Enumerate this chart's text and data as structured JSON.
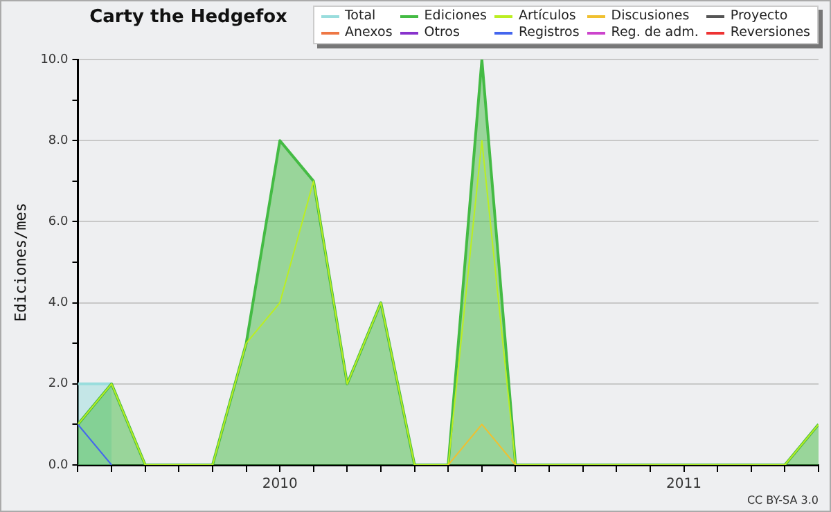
{
  "chart_data": {
    "type": "line",
    "title": "Carty the Hedgefox",
    "ylabel": "Ediciones/mes",
    "x": [
      "2009-07",
      "2009-08",
      "2009-09",
      "2009-10",
      "2009-11",
      "2009-12",
      "2010-01",
      "2010-02",
      "2010-03",
      "2010-04",
      "2010-05",
      "2010-06",
      "2010-07",
      "2010-08",
      "2010-09",
      "2010-10",
      "2010-11",
      "2010-12",
      "2011-01",
      "2011-02",
      "2011-03",
      "2011-04",
      "2011-05"
    ],
    "xlim": [
      "2009-07",
      "2011-05"
    ],
    "xticks": [
      {
        "value": "2009-07",
        "label": null
      },
      {
        "value": "2009-08",
        "label": null
      },
      {
        "value": "2009-09",
        "label": null
      },
      {
        "value": "2009-10",
        "label": null
      },
      {
        "value": "2009-11",
        "label": null
      },
      {
        "value": "2009-12",
        "label": null
      },
      {
        "value": "2010-01",
        "label": "2010"
      },
      {
        "value": "2010-02",
        "label": null
      },
      {
        "value": "2010-03",
        "label": null
      },
      {
        "value": "2010-04",
        "label": null
      },
      {
        "value": "2010-05",
        "label": null
      },
      {
        "value": "2010-06",
        "label": null
      },
      {
        "value": "2010-07",
        "label": null
      },
      {
        "value": "2010-08",
        "label": null
      },
      {
        "value": "2010-09",
        "label": null
      },
      {
        "value": "2010-10",
        "label": null
      },
      {
        "value": "2010-11",
        "label": null
      },
      {
        "value": "2010-12",
        "label": null
      },
      {
        "value": "2011-01",
        "label": "2011"
      },
      {
        "value": "2011-02",
        "label": null
      },
      {
        "value": "2011-03",
        "label": null
      },
      {
        "value": "2011-04",
        "label": null
      },
      {
        "value": "2011-05",
        "label": null
      }
    ],
    "ylim": [
      0,
      10
    ],
    "yticks": [
      {
        "value": 0,
        "label": "0.0"
      },
      {
        "value": 1,
        "label": null
      },
      {
        "value": 2,
        "label": "2.0"
      },
      {
        "value": 3,
        "label": null
      },
      {
        "value": 4,
        "label": "4.0"
      },
      {
        "value": 5,
        "label": null
      },
      {
        "value": 6,
        "label": "6.0"
      },
      {
        "value": 7,
        "label": null
      },
      {
        "value": 8,
        "label": "8.0"
      },
      {
        "value": 9,
        "label": null
      },
      {
        "value": 10,
        "label": "10.0"
      }
    ],
    "grid": "y",
    "legend": "top right",
    "marker": "none",
    "annotations": [
      "CC BY-SA 3.0"
    ],
    "series": [
      {
        "name": "Total",
        "type": "area",
        "color": "#99dddd",
        "values": [
          2,
          2,
          null,
          null,
          null,
          null,
          null,
          null,
          null,
          null,
          null,
          null,
          null,
          null,
          null,
          null,
          null,
          null,
          null,
          null,
          null,
          null,
          null
        ]
      },
      {
        "name": "Anexos",
        "color": "#ee7744",
        "values": [
          null,
          null,
          null,
          null,
          null,
          null,
          null,
          null,
          null,
          null,
          null,
          null,
          null,
          null,
          null,
          null,
          null,
          null,
          null,
          null,
          null,
          null,
          null
        ]
      },
      {
        "name": "Ediciones",
        "type": "area",
        "color": "#44bb44",
        "values": [
          1,
          2,
          0,
          0,
          0,
          3,
          8,
          7,
          2,
          4,
          0,
          0,
          10,
          0,
          0,
          0,
          0,
          0,
          0,
          0,
          0,
          0,
          1
        ]
      },
      {
        "name": "Otros",
        "color": "#8833cc",
        "values": [
          null,
          null,
          null,
          null,
          null,
          null,
          null,
          null,
          null,
          null,
          null,
          null,
          null,
          null,
          null,
          null,
          null,
          null,
          null,
          null,
          null,
          null,
          null
        ]
      },
      {
        "name": "Artículos",
        "color": "#bbee22",
        "values": [
          1,
          2,
          0,
          0,
          0,
          3,
          4,
          7,
          2,
          4,
          0,
          0,
          8,
          0,
          0,
          0,
          0,
          0,
          0,
          0,
          0,
          0,
          1
        ]
      },
      {
        "name": "Registros",
        "color": "#4466ee",
        "values": [
          1,
          0,
          null,
          null,
          null,
          null,
          null,
          null,
          null,
          null,
          null,
          null,
          null,
          null,
          null,
          null,
          null,
          null,
          null,
          null,
          null,
          null,
          null
        ]
      },
      {
        "name": "Discusiones",
        "color": "#f0c030",
        "values": [
          null,
          null,
          null,
          null,
          null,
          null,
          null,
          null,
          null,
          null,
          null,
          0,
          1,
          0,
          null,
          null,
          null,
          null,
          null,
          null,
          null,
          null,
          null
        ]
      },
      {
        "name": "Reg. de adm.",
        "color": "#cc44cc",
        "values": [
          null,
          null,
          null,
          null,
          null,
          null,
          null,
          null,
          null,
          null,
          null,
          null,
          null,
          null,
          null,
          null,
          null,
          null,
          null,
          null,
          null,
          null,
          null
        ]
      },
      {
        "name": "Proyecto",
        "color": "#555555",
        "values": [
          null,
          null,
          null,
          null,
          null,
          null,
          null,
          null,
          null,
          null,
          null,
          null,
          null,
          null,
          null,
          null,
          null,
          null,
          null,
          null,
          null,
          null,
          null
        ]
      },
      {
        "name": "Reversiones",
        "color": "#ee3333",
        "values": [
          null,
          null,
          null,
          null,
          null,
          null,
          null,
          null,
          null,
          null,
          null,
          null,
          null,
          null,
          null,
          null,
          null,
          null,
          null,
          null,
          null,
          null,
          null
        ]
      }
    ]
  }
}
